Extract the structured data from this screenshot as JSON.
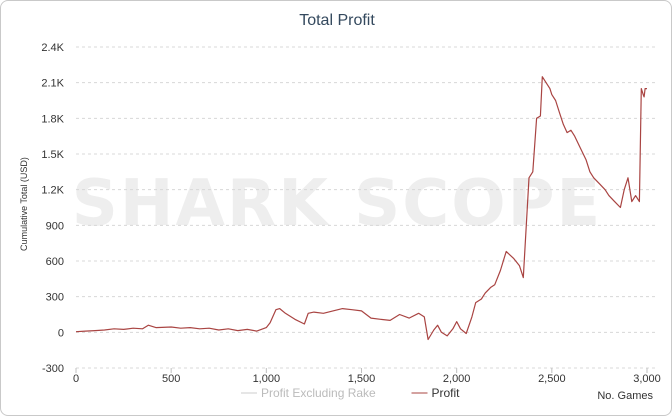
{
  "chart_data": {
    "type": "line",
    "title": "Total Profit",
    "xlabel": "No. Games",
    "ylabel": "Cumulative Total (USD)",
    "xlim": [
      0,
      3000
    ],
    "ylim": [
      -300,
      2400
    ],
    "x_ticks": [
      "0",
      "500",
      "1,000",
      "1,500",
      "2,000",
      "2,500",
      "3,000"
    ],
    "y_ticks": [
      "-300",
      "0",
      "300",
      "600",
      "900",
      "1.2K",
      "1.5K",
      "1.8K",
      "2.1K",
      "2.4K"
    ],
    "grid": true,
    "legend_position": "bottom",
    "watermark": "SHARK SCOPE",
    "series": [
      {
        "name": "Profit Excluding Rake",
        "color": "#cccccc",
        "x": [],
        "y": []
      },
      {
        "name": "Profit",
        "color": "#a94442",
        "x": [
          0,
          50,
          100,
          150,
          200,
          250,
          300,
          350,
          380,
          420,
          500,
          550,
          600,
          650,
          700,
          750,
          800,
          850,
          900,
          950,
          1000,
          1020,
          1050,
          1070,
          1100,
          1150,
          1200,
          1220,
          1250,
          1300,
          1350,
          1400,
          1450,
          1500,
          1550,
          1600,
          1650,
          1700,
          1750,
          1800,
          1830,
          1850,
          1880,
          1900,
          1920,
          1950,
          1980,
          2000,
          2020,
          2050,
          2080,
          2100,
          2130,
          2150,
          2180,
          2200,
          2230,
          2260,
          2300,
          2330,
          2350,
          2380,
          2400,
          2420,
          2440,
          2450,
          2470,
          2490,
          2500,
          2520,
          2540,
          2560,
          2580,
          2600,
          2620,
          2650,
          2680,
          2700,
          2720,
          2750,
          2780,
          2800,
          2830,
          2860,
          2880,
          2900,
          2920,
          2940,
          2960,
          2970,
          2980,
          2985,
          2990,
          3000
        ],
        "y": [
          5,
          10,
          15,
          20,
          30,
          25,
          35,
          30,
          60,
          40,
          45,
          35,
          40,
          30,
          35,
          20,
          30,
          15,
          25,
          10,
          40,
          80,
          190,
          200,
          160,
          110,
          70,
          160,
          170,
          160,
          180,
          200,
          190,
          180,
          120,
          110,
          100,
          150,
          120,
          160,
          130,
          -60,
          20,
          60,
          0,
          -30,
          30,
          90,
          30,
          -10,
          130,
          250,
          280,
          330,
          380,
          400,
          520,
          680,
          620,
          560,
          460,
          1300,
          1350,
          1800,
          1820,
          2150,
          2100,
          2050,
          2000,
          1950,
          1850,
          1750,
          1680,
          1700,
          1650,
          1550,
          1450,
          1350,
          1300,
          1250,
          1200,
          1150,
          1100,
          1050,
          1200,
          1300,
          1100,
          1150,
          1100,
          2050,
          2000,
          1980,
          2050,
          2050
        ]
      }
    ]
  }
}
